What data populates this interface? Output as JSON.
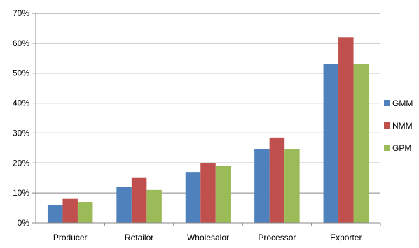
{
  "chart_data": {
    "type": "bar",
    "categories": [
      "Producer",
      "Retailor",
      "Wholesalor",
      "Processor",
      "Exporter"
    ],
    "series": [
      {
        "name": "GMM",
        "color": "#4F81BD",
        "values": [
          6,
          12,
          17,
          24.5,
          53
        ]
      },
      {
        "name": "NMM",
        "color": "#C0504D",
        "values": [
          8,
          15,
          20,
          28.5,
          62
        ]
      },
      {
        "name": "GPM",
        "color": "#9BBB59",
        "values": [
          7,
          11,
          19,
          24.5,
          53
        ]
      }
    ],
    "y_ticks": [
      "0%",
      "10%",
      "20%",
      "30%",
      "40%",
      "50%",
      "60%",
      "70%"
    ],
    "ylim": [
      0,
      70
    ],
    "y_unit": "%",
    "grid": true,
    "legend_position": "right",
    "title": "",
    "xlabel": "",
    "ylabel": ""
  }
}
